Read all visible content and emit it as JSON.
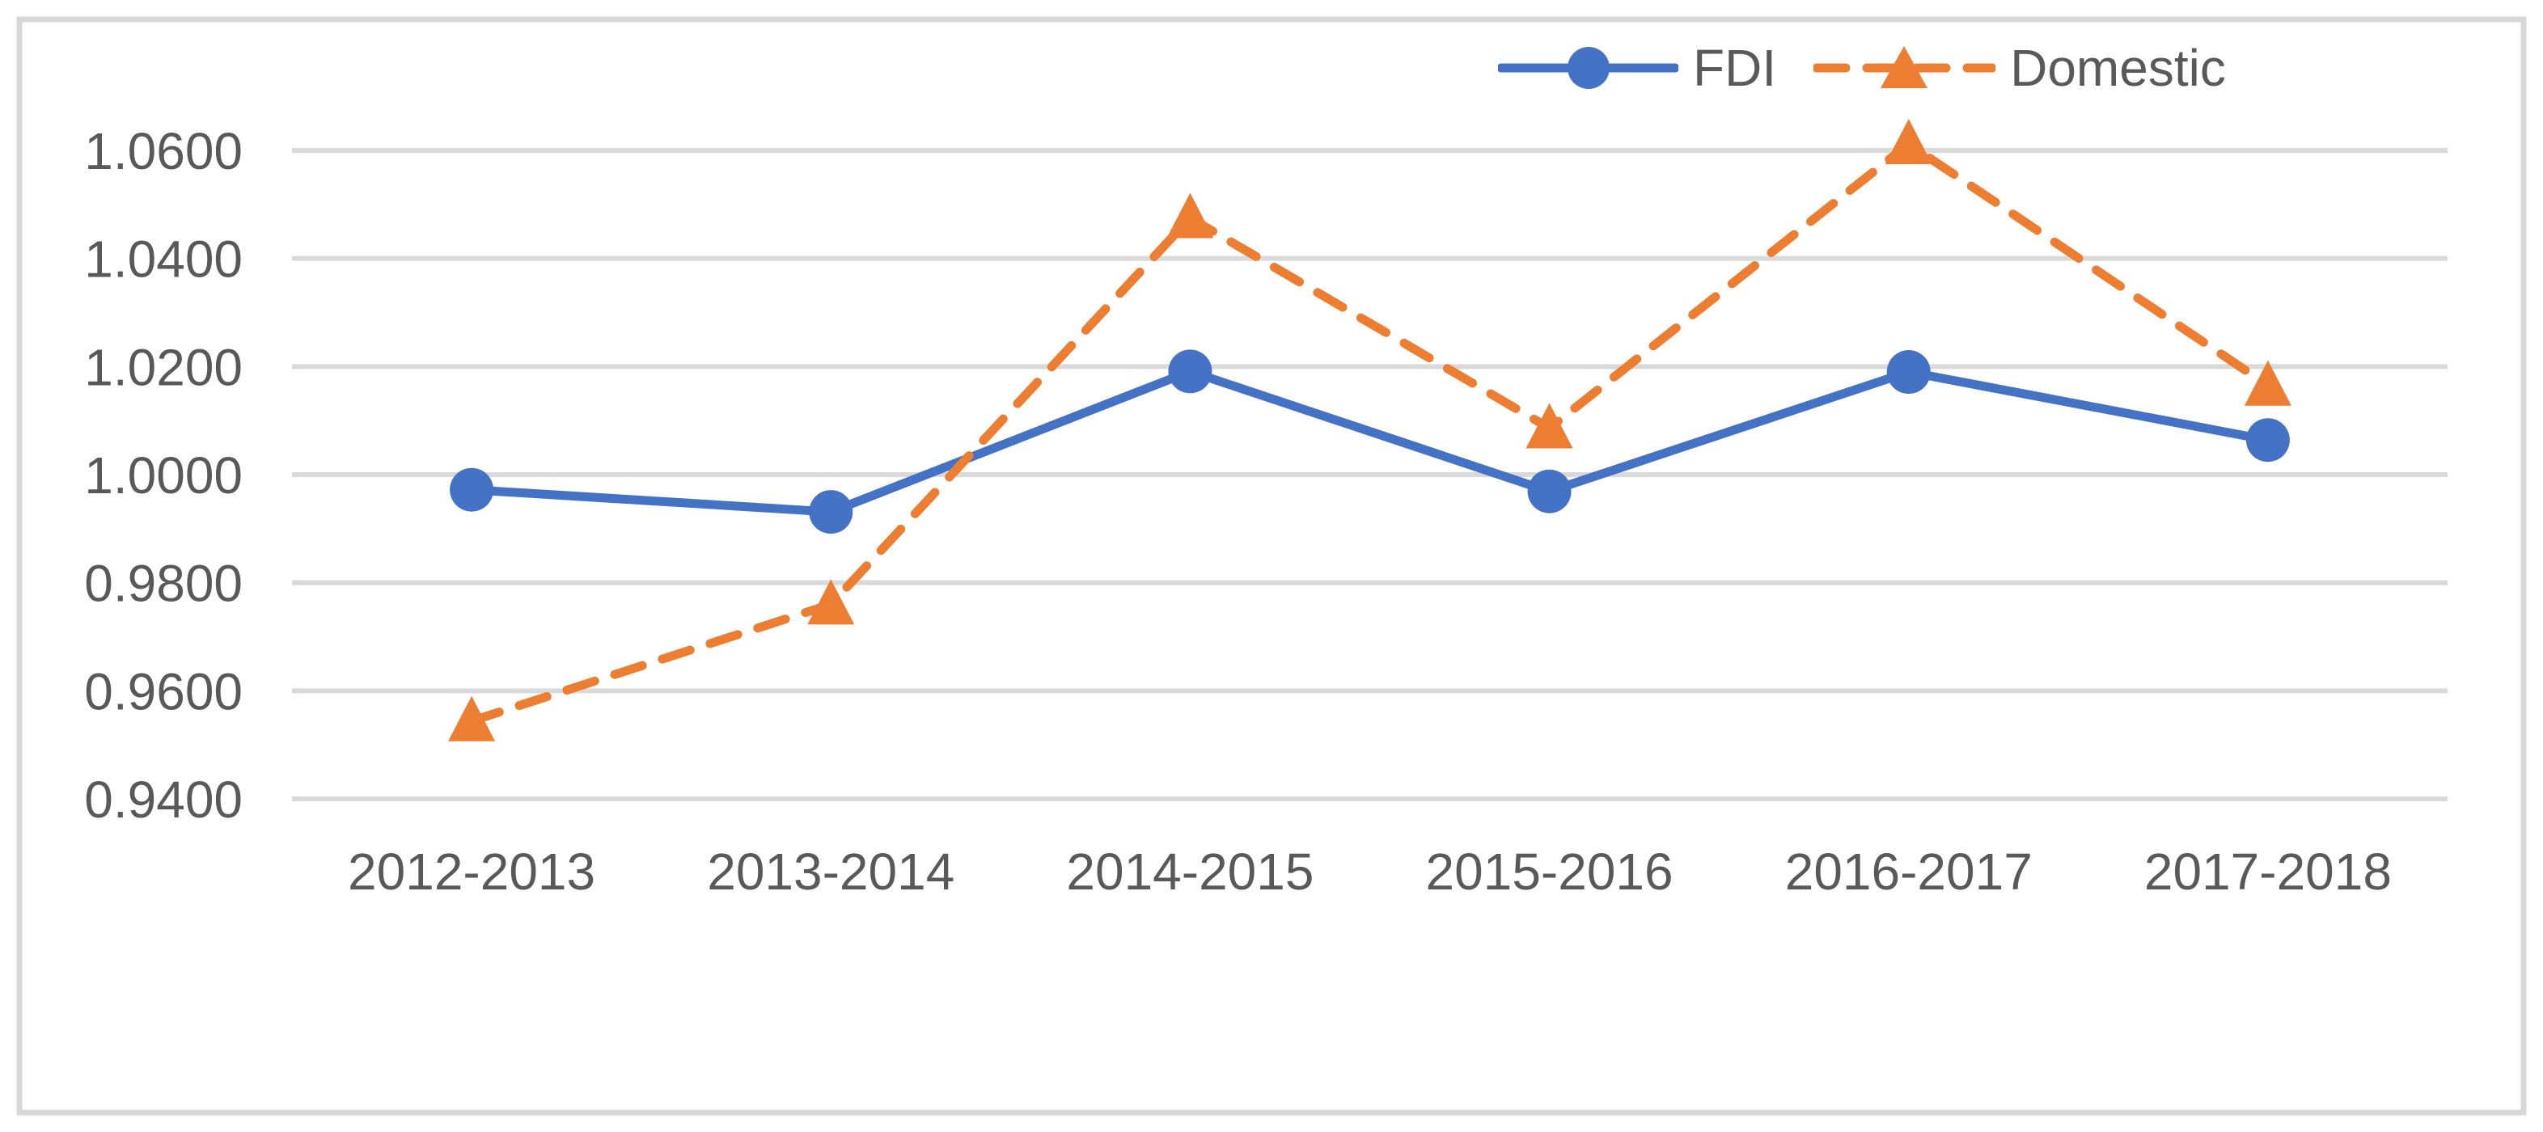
{
  "chart_data": {
    "type": "line",
    "title": "",
    "xlabel": "",
    "ylabel": "",
    "categories": [
      "2012-2013",
      "2013-2014",
      "2014-2015",
      "2015-2016",
      "2016-2017",
      "2017-2018"
    ],
    "series": [
      {
        "name": "FDI",
        "color": "#4472C4",
        "line_style": "solid",
        "marker": "circle",
        "values": [
          0.9972,
          0.9931,
          1.0191,
          0.9969,
          1.019,
          1.0064
        ]
      },
      {
        "name": "Domestic",
        "color": "#ED7D31",
        "line_style": "dashed",
        "marker": "triangle",
        "values": [
          0.9544,
          0.976,
          1.0475,
          1.0086,
          1.0612,
          1.0165
        ]
      }
    ],
    "ylim": [
      0.94,
      1.06
    ],
    "ytick_step": 0.02,
    "ytick_labels": [
      "0.9400",
      "0.9600",
      "0.9800",
      "1.0000",
      "1.0200",
      "1.0400",
      "1.0600"
    ],
    "grid": "horizontal-only",
    "legend_position": "top-right",
    "gridline_color": "#D9D9D9",
    "border_color": "#D9D9D9",
    "text_color": "#595959",
    "background_color": "#FFFFFF"
  }
}
